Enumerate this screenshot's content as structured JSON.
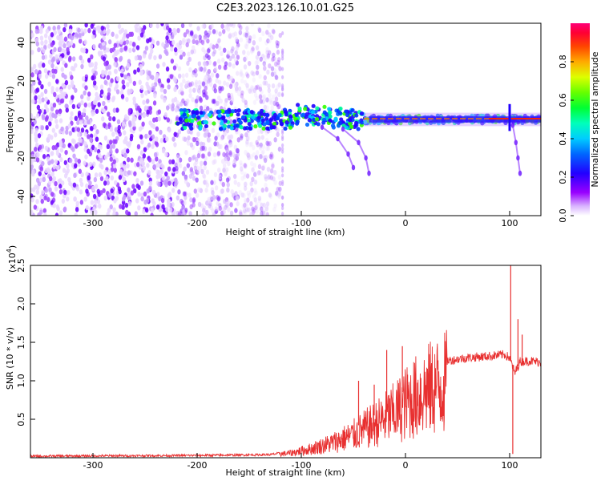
{
  "title": "C2E3.2023.126.10.01.G25",
  "chart_data": [
    {
      "type": "heatmap",
      "xlabel": "Height of straight line (km)",
      "ylabel": "Frequency (Hz)",
      "xlim": [
        -360,
        130
      ],
      "ylim": [
        -50,
        50
      ],
      "x_ticks": [
        -300,
        -200,
        -100,
        0,
        100
      ],
      "x_tick_labels": [
        "-300",
        "-200",
        "-100",
        "0",
        "100"
      ],
      "y_ticks": [
        40,
        20,
        0,
        -20,
        -40
      ],
      "y_tick_labels": [
        "40",
        "20",
        "0",
        "-20",
        "-40"
      ],
      "colorbar": {
        "label": "Normalized spectral amplitude",
        "range": [
          0.0,
          1.0
        ],
        "ticks": [
          0.0,
          0.2,
          0.4,
          0.6,
          0.8
        ],
        "tick_labels": [
          "0.0",
          "0.2",
          "0.4",
          "0.6",
          "0.8"
        ]
      },
      "features": {
        "noise_region_x": [
          -360,
          -130
        ],
        "signal_band_center_hz": 0,
        "signal_band_start_x": -220,
        "branch_tracks": [
          {
            "x": [
              -80,
              -65,
              -55,
              -50
            ],
            "y": [
              -4,
              -10,
              -18,
              -25
            ]
          },
          {
            "x": [
              -60,
              -45,
              -38,
              -35
            ],
            "y": [
              -5,
              -12,
              -20,
              -28
            ]
          },
          {
            "x": [
              103,
              106,
              108,
              110
            ],
            "y": [
              -3,
              -12,
              -20,
              -28
            ]
          }
        ]
      }
    },
    {
      "type": "line",
      "xlabel": "Height of straight line (km)",
      "ylabel": "SNR (10 * v/v)",
      "y_exponent_label": "(x10",
      "y_exponent_power": "4",
      "y_exponent_close": ")",
      "xlim": [
        -360,
        130
      ],
      "ylim": [
        0,
        2.5
      ],
      "x_ticks": [
        -300,
        -200,
        -100,
        0,
        100
      ],
      "x_tick_labels": [
        "-300",
        "-200",
        "-100",
        "0",
        "100"
      ],
      "y_ticks": [
        0.5,
        1.0,
        1.5,
        2.0,
        2.5
      ],
      "y_tick_labels": [
        "0.5",
        "1.0",
        "1.5",
        "2.0",
        "2.5"
      ],
      "color": "#e83030",
      "envelope": {
        "x": [
          -360,
          -200,
          -130,
          -110,
          -90,
          -70,
          -50,
          -30,
          -10,
          0,
          20,
          40,
          60,
          80,
          95,
          100,
          105,
          110,
          120,
          130
        ],
        "y": [
          0.02,
          0.03,
          0.04,
          0.08,
          0.15,
          0.25,
          0.38,
          0.55,
          0.75,
          0.9,
          1.12,
          1.26,
          1.3,
          1.32,
          1.34,
          1.3,
          1.1,
          1.25,
          1.26,
          1.24
        ]
      },
      "spikes": [
        {
          "x": -45,
          "y": 1.0
        },
        {
          "x": -30,
          "y": 0.95
        },
        {
          "x": -18,
          "y": 1.4
        },
        {
          "x": -3,
          "y": 1.45
        },
        {
          "x": 2,
          "y": 1.08
        },
        {
          "x": 101,
          "y": 2.5
        },
        {
          "x": 103,
          "y": 0.05
        },
        {
          "x": 108,
          "y": 1.8
        },
        {
          "x": 112,
          "y": 1.6
        }
      ]
    }
  ]
}
